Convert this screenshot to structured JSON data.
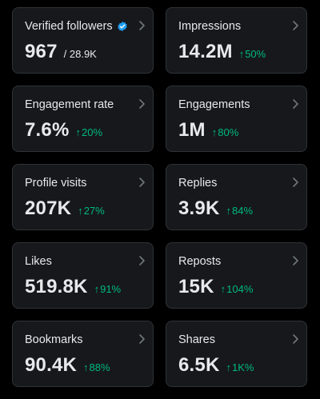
{
  "colors": {
    "background": "#000000",
    "card": "#16181c",
    "border": "#2f3336",
    "text": "#e7e9ea",
    "positive": "#00ba7c",
    "verified": "#1d9bf0"
  },
  "cards": [
    {
      "label": "Verified followers",
      "value": "967",
      "total": "/ 28.9K",
      "change": ""
    },
    {
      "label": "Impressions",
      "value": "14.2M",
      "change": "50%"
    },
    {
      "label": "Engagement rate",
      "value": "7.6%",
      "change": "20%"
    },
    {
      "label": "Engagements",
      "value": "1M",
      "change": "80%"
    },
    {
      "label": "Profile visits",
      "value": "207K",
      "change": "27%"
    },
    {
      "label": "Replies",
      "value": "3.9K",
      "change": "84%"
    },
    {
      "label": "Likes",
      "value": "519.8K",
      "change": "91%"
    },
    {
      "label": "Reposts",
      "value": "15K",
      "change": "104%"
    },
    {
      "label": "Bookmarks",
      "value": "90.4K",
      "change": "88%"
    },
    {
      "label": "Shares",
      "value": "6.5K",
      "change": "1K%"
    }
  ]
}
